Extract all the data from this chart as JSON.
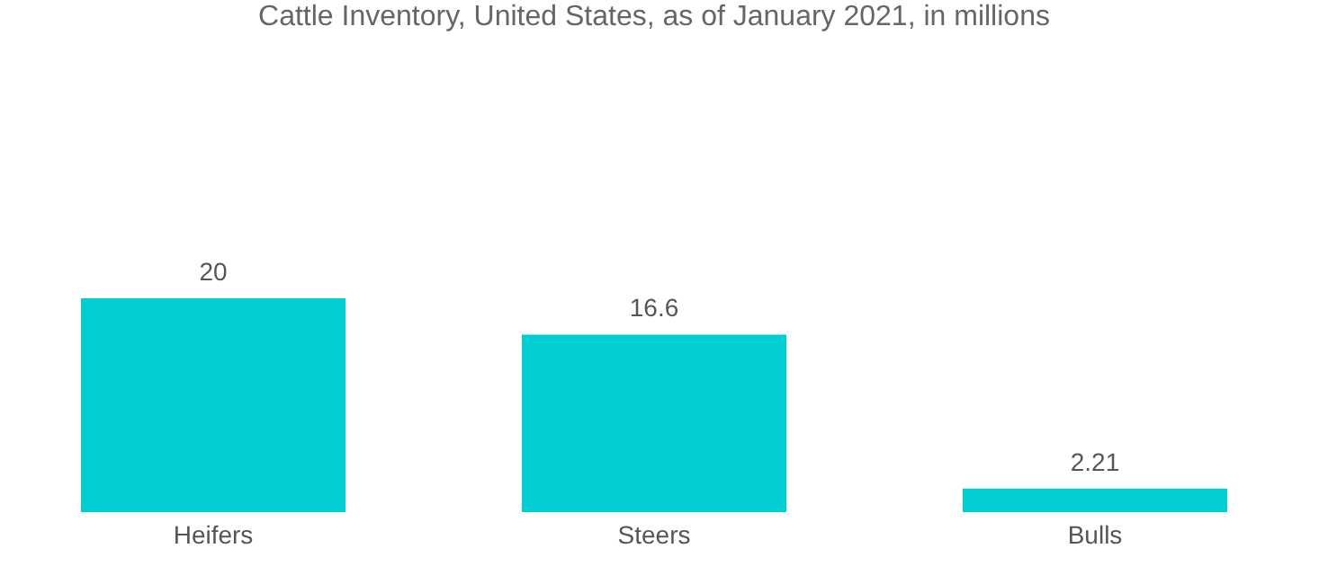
{
  "chart_data": {
    "type": "bar",
    "title": "Cattle Inventory, United States,  as of January 2021, in millions",
    "categories": [
      "Heifers",
      "Steers",
      "Bulls"
    ],
    "values": [
      20,
      16.6,
      2.21
    ],
    "color": "#00ced1",
    "data_labels": true
  }
}
